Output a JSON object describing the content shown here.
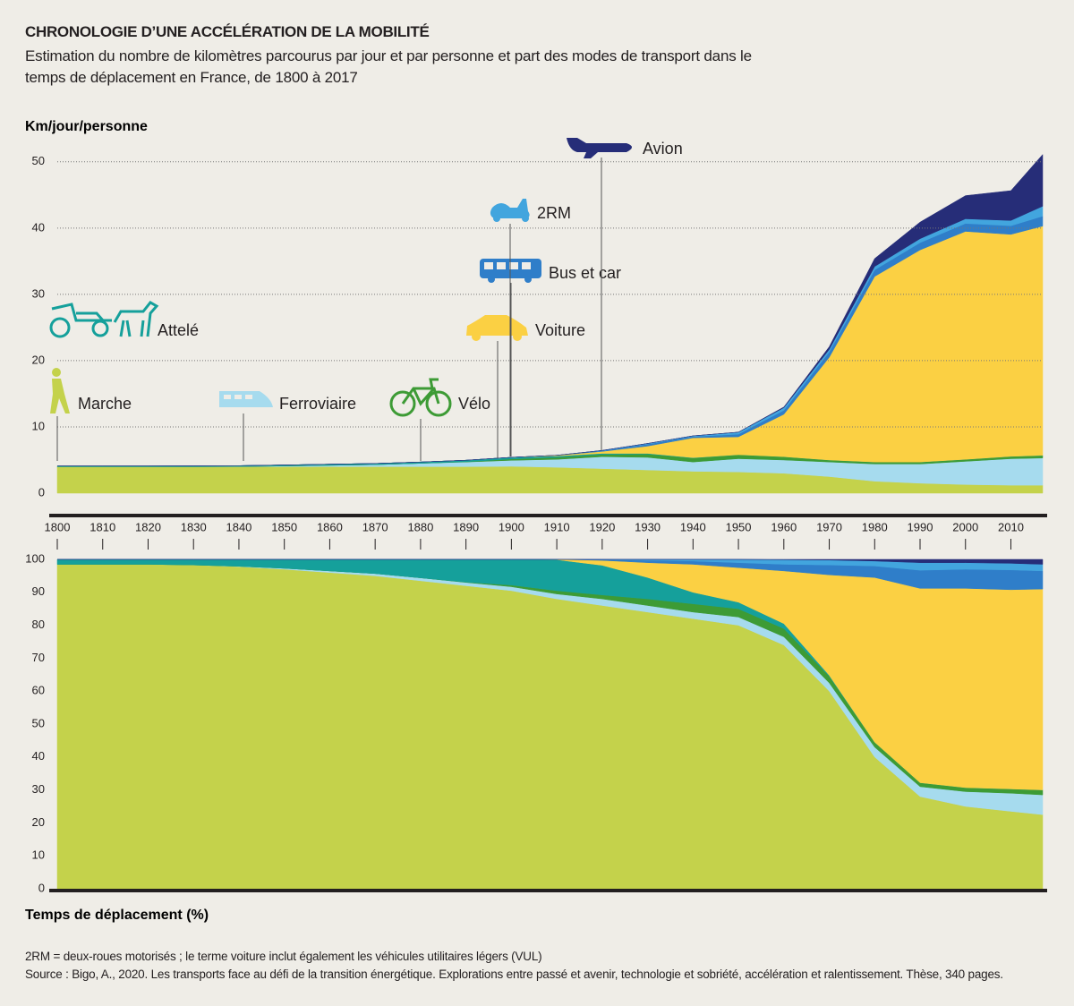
{
  "title": "CHRONOLOGIE D’UNE ACCÉLÉRATION DE LA MOBILITÉ",
  "subtitle": "Estimation du nombre de kilomètres parcourus par jour et par personne et part des modes de transport dans le temps de déplacement en France, de 1800 à 2017",
  "notes": [
    "2RM = deux-roues motorisés ; le terme voiture inclut également les véhicules utilitaires légers (VUL)",
    "Source : Bigo, A., 2020. Les transports face au défi de la transition énergétique. Explorations entre passé et avenir, technologie et sobriété, accélération et ralentissement. Thèse, 340 pages."
  ],
  "chart_data": [
    {
      "type": "stacked-area",
      "y_label": "Km/jour/personne",
      "x": [
        1800,
        1810,
        1820,
        1830,
        1840,
        1850,
        1860,
        1870,
        1880,
        1890,
        1900,
        1910,
        1920,
        1930,
        1940,
        1950,
        1960,
        1970,
        1980,
        1990,
        2000,
        2010,
        2017
      ],
      "xlim": [
        1800,
        2017
      ],
      "xticks": [
        1800,
        1810,
        1820,
        1830,
        1840,
        1850,
        1860,
        1870,
        1880,
        1890,
        1900,
        1910,
        1920,
        1930,
        1940,
        1950,
        1960,
        1970,
        1980,
        1990,
        2000,
        2010
      ],
      "ylim": [
        0,
        52
      ],
      "yticks": [
        0,
        10,
        20,
        30,
        40,
        50
      ],
      "grid": true,
      "series": [
        {
          "name": "Marche",
          "color": "#c4d24b",
          "values": [
            4.0,
            4.0,
            4.0,
            4.0,
            4.0,
            4.0,
            4.0,
            4.0,
            4.0,
            4.0,
            4.05,
            3.9,
            3.7,
            3.5,
            3.3,
            3.2,
            3.0,
            2.5,
            1.8,
            1.5,
            1.3,
            1.2,
            1.2
          ]
        },
        {
          "name": "Ferroviaire",
          "color": "#a6dbee",
          "values": [
            0,
            0,
            0,
            0,
            0.02,
            0.1,
            0.2,
            0.3,
            0.5,
            0.7,
            0.9,
            1.2,
            1.8,
            1.9,
            1.4,
            2.0,
            2.0,
            2.2,
            2.6,
            2.9,
            3.5,
            4.0,
            4.1
          ]
        },
        {
          "name": "Vélo",
          "color": "#3d9b35",
          "values": [
            0,
            0,
            0,
            0,
            0,
            0,
            0,
            0,
            0,
            0.05,
            0.2,
            0.3,
            0.35,
            0.5,
            0.6,
            0.6,
            0.5,
            0.3,
            0.3,
            0.3,
            0.3,
            0.35,
            0.4
          ]
        },
        {
          "name": "Attelé",
          "color": "#15a09b",
          "values": [
            0.1,
            0.1,
            0.1,
            0.12,
            0.13,
            0.15,
            0.17,
            0.18,
            0.2,
            0.22,
            0.25,
            0.2,
            0.15,
            0.1,
            0.05,
            0,
            0,
            0,
            0,
            0,
            0,
            0,
            0
          ]
        },
        {
          "name": "Voiture",
          "color": "#fbd043",
          "values": [
            0,
            0,
            0,
            0,
            0,
            0,
            0,
            0,
            0,
            0,
            0.01,
            0.1,
            0.3,
            1.1,
            3.0,
            2.7,
            6.4,
            15.5,
            28.0,
            32.0,
            34.4,
            33.5,
            34.6
          ]
        },
        {
          "name": "Bus et car",
          "color": "#2f7ec9",
          "values": [
            0,
            0,
            0,
            0,
            0,
            0,
            0,
            0,
            0,
            0,
            0,
            0.02,
            0.1,
            0.3,
            0.2,
            0.4,
            0.6,
            0.8,
            1.0,
            1.1,
            1.2,
            1.3,
            1.5
          ]
        },
        {
          "name": "2RM",
          "color": "#42a5de",
          "values": [
            0,
            0,
            0,
            0,
            0,
            0,
            0,
            0,
            0,
            0,
            0,
            0,
            0.05,
            0.1,
            0.1,
            0.3,
            0.4,
            0.4,
            0.5,
            0.6,
            0.7,
            0.8,
            1.5
          ]
        },
        {
          "name": "Avion",
          "color": "#262d78",
          "values": [
            0,
            0,
            0,
            0,
            0,
            0,
            0,
            0,
            0,
            0,
            0,
            0,
            0,
            0,
            0,
            0.01,
            0.1,
            0.4,
            1.2,
            2.5,
            3.5,
            4.5,
            7.8
          ]
        }
      ]
    },
    {
      "type": "stacked-area",
      "y_label": "Temps de déplacement (%)",
      "x": [
        1800,
        1810,
        1820,
        1830,
        1840,
        1850,
        1860,
        1870,
        1880,
        1890,
        1900,
        1910,
        1920,
        1930,
        1940,
        1950,
        1960,
        1970,
        1980,
        1990,
        2000,
        2010,
        2017
      ],
      "xlim": [
        1800,
        2017
      ],
      "ylim": [
        0,
        100
      ],
      "yticks": [
        0,
        10,
        20,
        30,
        40,
        50,
        60,
        70,
        80,
        90,
        100
      ],
      "grid": false,
      "series": [
        {
          "color": "#c4d24b",
          "values": [
            98.5,
            98.5,
            98.5,
            98.3,
            97.8,
            97,
            96,
            95,
            93.5,
            92,
            90.5,
            88,
            86,
            84,
            82,
            80,
            74,
            60,
            40,
            28,
            25,
            23.5,
            22.5
          ]
        },
        {
          "color": "#a6dbee",
          "values": [
            0,
            0,
            0,
            0,
            0.1,
            0.3,
            0.5,
            0.7,
            0.9,
            1,
            1.2,
            1.5,
            2,
            2,
            2,
            2.5,
            2.5,
            2.5,
            3,
            3,
            4.5,
            5.5,
            6
          ]
        },
        {
          "color": "#3d9b35",
          "values": [
            0,
            0,
            0,
            0,
            0,
            0,
            0,
            0,
            0,
            0.1,
            0.5,
            1,
            1.2,
            2,
            2.5,
            2.5,
            2.5,
            2,
            1.5,
            1.2,
            1.2,
            1.3,
            1.5
          ]
        },
        {
          "color": "#15a09b",
          "values": [
            1.5,
            1.5,
            1.5,
            1.7,
            2.1,
            2.7,
            3.5,
            4.3,
            5.6,
            6.9,
            7.8,
            9.4,
            9,
            6.5,
            3.5,
            2,
            1.5,
            0.3,
            0,
            0,
            0,
            0,
            0
          ]
        },
        {
          "color": "#fbd043",
          "values": [
            0,
            0,
            0,
            0,
            0,
            0,
            0,
            0,
            0,
            0,
            0,
            0.1,
            1.5,
            4.5,
            8.5,
            10.5,
            16,
            30.5,
            50,
            59,
            60.5,
            60.5,
            61
          ]
        },
        {
          "color": "#2f7ec9",
          "values": [
            0,
            0,
            0,
            0,
            0,
            0,
            0,
            0,
            0,
            0,
            0,
            0,
            0.2,
            0.7,
            1,
            1.5,
            2,
            3,
            3.5,
            5.5,
            5.8,
            6,
            5.5
          ]
        },
        {
          "color": "#42a5de",
          "values": [
            0,
            0,
            0,
            0,
            0,
            0,
            0,
            0,
            0,
            0,
            0,
            0,
            0.1,
            0.3,
            0.5,
            1,
            1.4,
            1.5,
            1.5,
            2.3,
            2,
            2,
            2
          ]
        },
        {
          "color": "#262d78",
          "values": [
            0,
            0,
            0,
            0,
            0,
            0,
            0,
            0,
            0,
            0,
            0,
            0,
            0,
            0,
            0,
            0,
            0.1,
            0.2,
            0.5,
            1,
            1,
            1.2,
            1.5
          ]
        }
      ]
    }
  ]
}
